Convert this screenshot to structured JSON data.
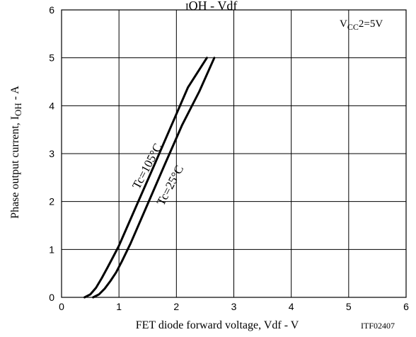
{
  "chart_data": {
    "type": "line",
    "title_fragment": "OH - Vdf",
    "xlabel": "FET diode forward voltage, Vdf - V",
    "ylabel": {
      "main": "Phase output current, I",
      "sub": "OH",
      "tail": " - A"
    },
    "condition": {
      "main": "V",
      "sub": "CC",
      "tail": "2=5V"
    },
    "figure_code": "ITF02407",
    "xlim": [
      0,
      6
    ],
    "ylim": [
      0,
      6
    ],
    "x_ticks": [
      "0",
      "1",
      "2",
      "3",
      "4",
      "5",
      "6"
    ],
    "y_ticks": [
      "0",
      "1",
      "2",
      "3",
      "4",
      "5",
      "6"
    ],
    "grid": true,
    "series": [
      {
        "name": "Tc=105°C",
        "points": [
          [
            0.4,
            0
          ],
          [
            0.5,
            0.06
          ],
          [
            0.6,
            0.2
          ],
          [
            0.7,
            0.4
          ],
          [
            0.8,
            0.62
          ],
          [
            0.9,
            0.85
          ],
          [
            1.0,
            1.08
          ],
          [
            1.3,
            1.9
          ],
          [
            1.6,
            2.72
          ],
          [
            1.9,
            3.55
          ],
          [
            2.2,
            4.38
          ],
          [
            2.53,
            5.0
          ]
        ]
      },
      {
        "name": "Tc=25°C",
        "points": [
          [
            0.55,
            0
          ],
          [
            0.65,
            0.06
          ],
          [
            0.75,
            0.18
          ],
          [
            0.85,
            0.34
          ],
          [
            0.95,
            0.52
          ],
          [
            1.05,
            0.75
          ],
          [
            1.2,
            1.12
          ],
          [
            1.5,
            1.95
          ],
          [
            1.8,
            2.78
          ],
          [
            2.1,
            3.6
          ],
          [
            2.4,
            4.3
          ],
          [
            2.66,
            5.0
          ]
        ]
      }
    ]
  }
}
